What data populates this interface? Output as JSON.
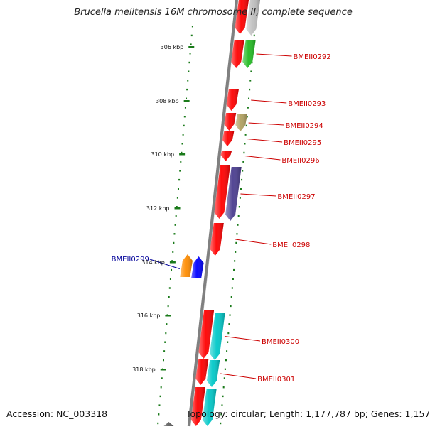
{
  "title": "Brucella melitensis 16M chromosome II, complete sequence",
  "accession": "Accession: NC_003318",
  "summary": "Topology: circular; Length: 1,177,787 bp; Genes: 1,157",
  "colors": {
    "tick": "#1a7a1a",
    "forward_label": "#cc0000",
    "reverse_label": "#000099",
    "backbone": "#808080"
  },
  "ticks": [
    "306 kbp",
    "308 kbp",
    "310 kbp",
    "312 kbp",
    "314 kbp",
    "316 kbp",
    "318 kbp"
  ],
  "genes": [
    {
      "label": "",
      "strand": "forward",
      "color": "#ff0000"
    },
    {
      "label": "",
      "strand": "forward",
      "color": "#c0c0c0"
    },
    {
      "label": "BMEII0292",
      "strand": "forward",
      "color": "#ff0000"
    },
    {
      "label": "",
      "strand": "forward",
      "color": "#22bb22"
    },
    {
      "label": "BMEII0293",
      "strand": "forward",
      "color": "#ff0000"
    },
    {
      "label": "",
      "strand": "forward",
      "color": "#ff0000"
    },
    {
      "label": "BMEII0294",
      "strand": "forward",
      "color": "#b0a060"
    },
    {
      "label": "BMEII0295",
      "strand": "forward",
      "color": "#ff0000"
    },
    {
      "label": "BMEII0296",
      "strand": "forward",
      "color": "#ff0000"
    },
    {
      "label": "",
      "strand": "forward",
      "color": "#ff0000"
    },
    {
      "label": "BMEII0297",
      "strand": "forward",
      "color": "#4a3d8f"
    },
    {
      "label": "BMEII0298",
      "strand": "forward",
      "color": "#ff0000"
    },
    {
      "label": "",
      "strand": "reverse",
      "color": "#ff8c00"
    },
    {
      "label": "BMEII0299",
      "strand": "reverse",
      "color": "#0000ff"
    },
    {
      "label": "",
      "strand": "forward",
      "color": "#ff0000"
    },
    {
      "label": "BMEII0300",
      "strand": "forward",
      "color": "#00c8c8"
    },
    {
      "label": "",
      "strand": "forward",
      "color": "#ff0000"
    },
    {
      "label": "BMEII0301",
      "strand": "forward",
      "color": "#00c8c8"
    },
    {
      "label": "",
      "strand": "forward",
      "color": "#ff0000"
    },
    {
      "label": "",
      "strand": "forward",
      "color": "#00c8c8"
    },
    {
      "label": "",
      "strand": "reverse",
      "color": "#606060"
    }
  ]
}
